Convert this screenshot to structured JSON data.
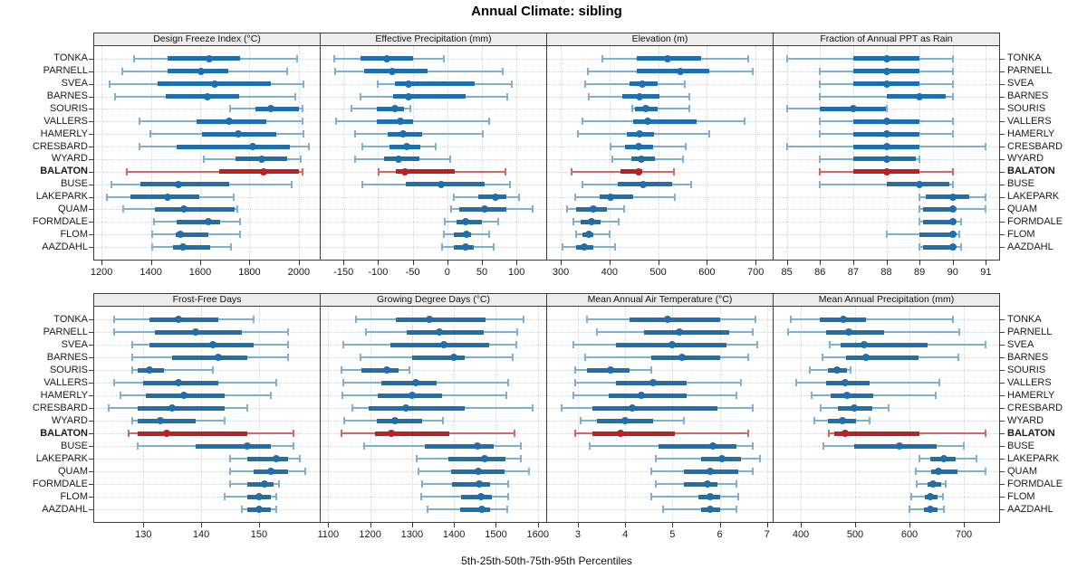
{
  "figure": {
    "title": "Annual Climate: sibling",
    "caption": "5th-25th-50th-75th-95th Percentiles"
  },
  "colors": {
    "blue": "#1f6fad",
    "blue_light": "#7fb0d4",
    "red": "#bb2025",
    "red_light": "#d06a6a",
    "grid": "#d2d2d2",
    "strip_bg": "#ededed",
    "panel_border": "#3c3c3c",
    "highlight_site": "BALATON"
  },
  "chart_data": {
    "type": "dotplot-interval",
    "percentiles": [
      "5th",
      "25th",
      "50th",
      "75th",
      "95th"
    ],
    "legend_note": "BALATON row highlighted red, label bold",
    "sites": [
      "TONKA",
      "PARNELL",
      "SVEA",
      "BARNES",
      "SOURIS",
      "VALLERS",
      "HAMERLY",
      "CRESBARD",
      "WYARD",
      "BALATON",
      "BUSE",
      "LAKEPARK",
      "QUAM",
      "FORMDALE",
      "FLOM",
      "AAZDAHL"
    ],
    "panels": [
      {
        "title": "Design Freeze Index (°C)",
        "grid_row": 0,
        "grid_col": 0,
        "xlim": [
          1170,
          2085
        ],
        "ticks": [
          1200,
          1400,
          1600,
          1800,
          2000
        ],
        "values": [
          [
            1333,
            1466,
            1637,
            1762,
            1992
          ],
          [
            1285,
            1466,
            1603,
            1714,
            1951
          ],
          [
            1233,
            1429,
            1659,
            1885,
            2018
          ],
          [
            1256,
            1459,
            1629,
            1759,
            1984
          ],
          [
            1722,
            1825,
            1888,
            1999,
            2014
          ],
          [
            1352,
            1585,
            1718,
            1870,
            2014
          ],
          [
            1396,
            1607,
            1755,
            1910,
            2018
          ],
          [
            1352,
            1503,
            1814,
            1962,
            2040
          ],
          [
            1614,
            1744,
            1848,
            1951,
            2007
          ],
          [
            1304,
            1677,
            1859,
            1999,
            2014
          ],
          [
            1241,
            1359,
            1511,
            1718,
            1970
          ],
          [
            1222,
            1318,
            1466,
            1596,
            1737
          ],
          [
            1289,
            1418,
            1533,
            1740,
            1751
          ],
          [
            1411,
            1503,
            1633,
            1681,
            1762
          ],
          [
            1404,
            1499,
            1519,
            1634,
            1761
          ],
          [
            1407,
            1489,
            1529,
            1640,
            1726
          ]
        ]
      },
      {
        "title": "Effective Precipitation (mm)",
        "grid_row": 0,
        "grid_col": 1,
        "xlim": [
          -183,
          143
        ],
        "ticks": [
          -150,
          -100,
          -50,
          0,
          50,
          100
        ],
        "values": [
          [
            -164,
            -126,
            -87,
            -50,
            -5
          ],
          [
            -162,
            -120,
            -79,
            -28,
            80
          ],
          [
            -101,
            -75,
            -56,
            39,
            93
          ],
          [
            -126,
            -78,
            -56,
            26,
            87
          ],
          [
            -139,
            -102,
            -76,
            -63,
            -54
          ],
          [
            -161,
            -102,
            -68,
            -50,
            61
          ],
          [
            -133,
            -86,
            -64,
            -37,
            52
          ],
          [
            -123,
            -83,
            -59,
            -39,
            -17
          ],
          [
            -133,
            -92,
            -70,
            -40,
            4
          ],
          [
            -99,
            -74,
            -61,
            11,
            84
          ],
          [
            -123,
            -60,
            -9,
            54,
            91
          ],
          [
            10,
            45,
            70,
            85,
            104
          ],
          [
            5,
            17,
            54,
            85,
            123
          ],
          [
            -4,
            13,
            27,
            50,
            74
          ],
          [
            -5,
            9,
            28,
            35,
            61
          ],
          [
            -7,
            10,
            27,
            38,
            67
          ]
        ]
      },
      {
        "title": "Elevation (m)",
        "grid_row": 0,
        "grid_col": 2,
        "xlim": [
          272,
          735
        ],
        "ticks": [
          300,
          400,
          500,
          600,
          700
        ],
        "values": [
          [
            385,
            457,
            519,
            588,
            685
          ],
          [
            355,
            457,
            546,
            605,
            695
          ],
          [
            351,
            442,
            467,
            498,
            555
          ],
          [
            357,
            427,
            462,
            503,
            564
          ],
          [
            446,
            452,
            475,
            499,
            564
          ],
          [
            345,
            449,
            479,
            579,
            678
          ],
          [
            335,
            436,
            461,
            492,
            605
          ],
          [
            402,
            432,
            460,
            490,
            557
          ],
          [
            406,
            444,
            465,
            493,
            550
          ],
          [
            323,
            422,
            460,
            468,
            532
          ],
          [
            345,
            417,
            470,
            528,
            567
          ],
          [
            330,
            379,
            402,
            448,
            535
          ],
          [
            313,
            332,
            367,
            394,
            430
          ],
          [
            325,
            341,
            364,
            382,
            418
          ],
          [
            332,
            344,
            357,
            367,
            400
          ],
          [
            304,
            332,
            348,
            367,
            412
          ]
        ]
      },
      {
        "title": "Fraction of Annual PPT as Rain",
        "grid_row": 0,
        "grid_col": 3,
        "xlim": [
          84.6,
          91.4
        ],
        "ticks": [
          85,
          86,
          87,
          88,
          89,
          90,
          91
        ],
        "values": [
          [
            85,
            87,
            88,
            89,
            90
          ],
          [
            86,
            87,
            88,
            89,
            90
          ],
          [
            86,
            87,
            88,
            89,
            90
          ],
          [
            86,
            88,
            89,
            89.8,
            90
          ],
          [
            85,
            86,
            87,
            88,
            88
          ],
          [
            86,
            87,
            88,
            89,
            90
          ],
          [
            86,
            87,
            88,
            89,
            90
          ],
          [
            85,
            87,
            88,
            89,
            91
          ],
          [
            86,
            87,
            88,
            88.9,
            89
          ],
          [
            86,
            87,
            88,
            89,
            90
          ],
          [
            86,
            88,
            89,
            89.9,
            90
          ],
          [
            89,
            89.2,
            90,
            90.5,
            91
          ],
          [
            89,
            89.1,
            90,
            90.1,
            91
          ],
          [
            89,
            89.1,
            90,
            90.1,
            90.25
          ],
          [
            88,
            89,
            90,
            90.05,
            90.2
          ],
          [
            89,
            89.1,
            90,
            90.1,
            90.25
          ]
        ]
      },
      {
        "title": "Frost-Free Days",
        "grid_row": 1,
        "grid_col": 0,
        "xlim": [
          121.5,
          160.5
        ],
        "ticks": [
          130,
          140,
          150
        ],
        "values": [
          [
            125,
            131,
            136,
            143,
            149
          ],
          [
            125,
            132,
            139,
            147,
            155
          ],
          [
            128,
            131,
            142,
            149,
            155
          ],
          [
            128,
            135,
            143,
            148,
            155
          ],
          [
            128,
            129,
            131,
            133.5,
            142
          ],
          [
            125,
            130,
            136,
            143,
            153
          ],
          [
            126,
            130.5,
            137,
            144,
            152
          ],
          [
            124,
            129,
            135,
            144,
            148
          ],
          [
            128,
            129,
            133,
            139,
            144
          ],
          [
            127.5,
            129,
            134,
            148,
            156
          ],
          [
            129,
            139,
            148,
            152,
            156
          ],
          [
            145,
            148,
            153,
            155,
            157
          ],
          [
            145,
            149,
            152,
            155,
            158
          ],
          [
            145,
            148,
            151,
            152.5,
            153.5
          ],
          [
            144,
            148,
            150,
            152,
            153
          ],
          [
            147,
            148,
            150,
            152,
            153
          ]
        ]
      },
      {
        "title": "Growing Degree Days (°C)",
        "grid_row": 1,
        "grid_col": 1,
        "xlim": [
          1082,
          1620
        ],
        "ticks": [
          1100,
          1200,
          1300,
          1400,
          1500,
          1600
        ],
        "values": [
          [
            1167,
            1262,
            1342,
            1475,
            1567
          ],
          [
            1190,
            1287,
            1365,
            1470,
            1550
          ],
          [
            1135,
            1248,
            1376,
            1484,
            1548
          ],
          [
            1176,
            1300,
            1400,
            1425,
            1540
          ],
          [
            1131,
            1180,
            1240,
            1267,
            1293
          ],
          [
            1137,
            1226,
            1308,
            1358,
            1530
          ],
          [
            1134,
            1219,
            1300,
            1371,
            1525
          ],
          [
            1157,
            1196,
            1285,
            1426,
            1588
          ],
          [
            1139,
            1217,
            1260,
            1323,
            1374
          ],
          [
            1132,
            1212,
            1250,
            1388,
            1545
          ],
          [
            1185,
            1330,
            1455,
            1495,
            1560
          ],
          [
            1310,
            1387,
            1474,
            1523,
            1560
          ],
          [
            1316,
            1393,
            1458,
            1520,
            1578
          ],
          [
            1323,
            1396,
            1460,
            1487,
            1530
          ],
          [
            1321,
            1417,
            1464,
            1490,
            1530
          ],
          [
            1336,
            1414,
            1467,
            1487,
            1528
          ]
        ]
      },
      {
        "title": "Mean Annual Air Temperature (°C)",
        "grid_row": 1,
        "grid_col": 2,
        "xlim": [
          2.35,
          7.12
        ],
        "ticks": [
          3,
          4,
          5,
          6,
          7
        ],
        "values": [
          [
            3.2,
            4.1,
            4.9,
            6.0,
            6.75
          ],
          [
            3.4,
            4.4,
            5.15,
            6.2,
            6.7
          ],
          [
            2.9,
            3.8,
            5.0,
            6.15,
            6.8
          ],
          [
            3.15,
            4.55,
            5.2,
            6.0,
            6.6
          ],
          [
            2.95,
            3.2,
            3.7,
            4.1,
            4.55
          ],
          [
            2.95,
            3.8,
            4.6,
            5.3,
            6.45
          ],
          [
            2.9,
            3.65,
            4.35,
            5.3,
            6.35
          ],
          [
            2.65,
            3.3,
            4.15,
            5.95,
            6.7
          ],
          [
            3.05,
            3.4,
            4.0,
            4.6,
            5.25
          ],
          [
            2.95,
            3.3,
            3.9,
            5.05,
            6.6
          ],
          [
            3.25,
            4.7,
            5.85,
            6.35,
            6.7
          ],
          [
            4.65,
            5.6,
            6.05,
            6.45,
            6.85
          ],
          [
            4.55,
            5.25,
            5.8,
            6.4,
            6.7
          ],
          [
            4.65,
            5.25,
            5.75,
            5.95,
            6.35
          ],
          [
            4.55,
            5.55,
            5.8,
            6.0,
            6.4
          ],
          [
            4.8,
            5.6,
            5.8,
            6.0,
            6.35
          ]
        ]
      },
      {
        "title": "Mean Annual Precipitation (mm)",
        "grid_row": 1,
        "grid_col": 3,
        "xlim": [
          350,
          765
        ],
        "ticks": [
          400,
          500,
          600,
          700
        ],
        "values": [
          [
            381,
            435,
            479,
            520,
            680
          ],
          [
            376,
            447,
            488,
            554,
            692
          ],
          [
            454,
            473,
            517,
            633,
            740
          ],
          [
            440,
            483,
            520,
            617,
            690
          ],
          [
            417,
            450,
            467,
            485,
            492
          ],
          [
            391,
            447,
            481,
            527,
            655
          ],
          [
            420,
            455,
            485,
            534,
            648
          ],
          [
            437,
            469,
            499,
            532,
            561
          ],
          [
            425,
            450,
            477,
            501,
            526
          ],
          [
            452,
            461,
            481,
            619,
            740
          ],
          [
            442,
            498,
            581,
            650,
            700
          ],
          [
            619,
            639,
            663,
            685,
            724
          ],
          [
            611,
            640,
            653,
            688,
            740
          ],
          [
            613,
            633,
            644,
            658,
            666
          ],
          [
            604,
            629,
            639,
            651,
            661
          ],
          [
            600,
            626,
            639,
            651,
            664
          ]
        ]
      }
    ]
  }
}
